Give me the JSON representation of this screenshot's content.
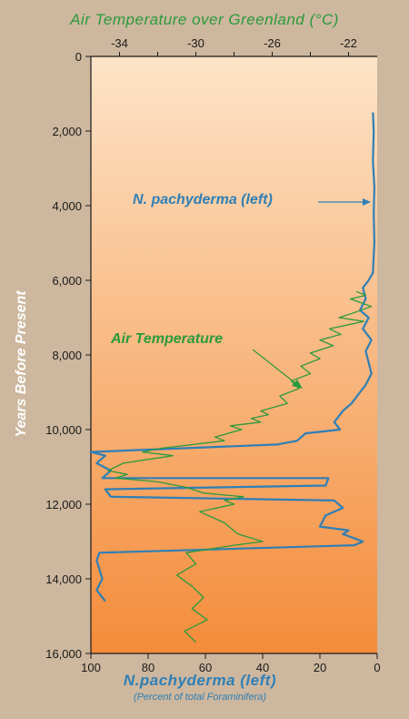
{
  "chart_data": {
    "type": "line",
    "title": "Air Temperature over Greenland (°C)",
    "ylabel": "Years Before Present",
    "xlabel": "N.pachyderma (left)",
    "xlabel_sub": "(Percent of total Foraminifera)",
    "ylim": [
      0,
      16000
    ],
    "y_ticks": [
      "0",
      "2,000",
      "4,000",
      "6,000",
      "8,000",
      "10,000",
      "12,000",
      "14,000",
      "16,000"
    ],
    "bottom_axis": {
      "range": [
        100,
        0
      ],
      "ticks": [
        "100",
        "80",
        "60",
        "40",
        "20",
        "0"
      ]
    },
    "top_axis": {
      "range": [
        -35.5,
        -20.5
      ],
      "ticks": [
        "-34",
        "-30",
        "-26",
        "-22"
      ]
    },
    "annotations": [
      "N. pachyderma (left)",
      "Air Temperature"
    ],
    "colors": {
      "pachyderma": "#2f7fb6",
      "air_temperature": "#2b9a3c",
      "gradient_top": "#fde4c8",
      "gradient_bottom": "#f48c3a",
      "background": "#cdb79e"
    },
    "series": [
      {
        "name": "N. pachyderma (left)",
        "axis": "bottom",
        "points": [
          [
            1.5,
            1500
          ],
          [
            1.2,
            2000
          ],
          [
            1.5,
            2800
          ],
          [
            1.0,
            3500
          ],
          [
            1.2,
            4200
          ],
          [
            1.0,
            5000
          ],
          [
            1.5,
            5800
          ],
          [
            3.0,
            6000
          ],
          [
            5.0,
            6200
          ],
          [
            4.0,
            6500
          ],
          [
            6.0,
            6800
          ],
          [
            3.0,
            7000
          ],
          [
            5.0,
            7300
          ],
          [
            2.0,
            7600
          ],
          [
            4.0,
            7900
          ],
          [
            3.0,
            8200
          ],
          [
            2.0,
            8500
          ],
          [
            4.0,
            8800
          ],
          [
            6.0,
            9000
          ],
          [
            9.0,
            9300
          ],
          [
            12.0,
            9500
          ],
          [
            15.0,
            9800
          ],
          [
            13.0,
            10000
          ],
          [
            25.0,
            10100
          ],
          [
            28.0,
            10300
          ],
          [
            35.0,
            10400
          ],
          [
            100.0,
            10600
          ],
          [
            95.0,
            10700
          ],
          [
            98.0,
            10900
          ],
          [
            93.0,
            11100
          ],
          [
            96.0,
            11300
          ],
          [
            17.0,
            11300
          ],
          [
            18.0,
            11500
          ],
          [
            95.0,
            11600
          ],
          [
            93.0,
            11800
          ],
          [
            15.0,
            11900
          ],
          [
            12.0,
            12100
          ],
          [
            18.0,
            12300
          ],
          [
            20.0,
            12600
          ],
          [
            10.0,
            12700
          ],
          [
            12.0,
            12800
          ],
          [
            5.0,
            13000
          ],
          [
            8.0,
            13100
          ],
          [
            97.0,
            13300
          ],
          [
            98.0,
            13500
          ],
          [
            96.0,
            14000
          ],
          [
            98.0,
            14300
          ],
          [
            95.0,
            14600
          ]
        ]
      },
      {
        "name": "Air Temperature",
        "axis": "top",
        "points": [
          [
            -21.6,
            6300
          ],
          [
            -21.1,
            6400
          ],
          [
            -21.9,
            6500
          ],
          [
            -20.8,
            6700
          ],
          [
            -21.6,
            6850
          ],
          [
            -22.5,
            7000
          ],
          [
            -21.2,
            7100
          ],
          [
            -23.0,
            7300
          ],
          [
            -22.4,
            7450
          ],
          [
            -23.5,
            7600
          ],
          [
            -22.8,
            7750
          ],
          [
            -24.0,
            7950
          ],
          [
            -23.5,
            8100
          ],
          [
            -24.5,
            8300
          ],
          [
            -24.0,
            8500
          ],
          [
            -25.0,
            8700
          ],
          [
            -24.6,
            8900
          ],
          [
            -25.6,
            9100
          ],
          [
            -25.2,
            9300
          ],
          [
            -26.6,
            9500
          ],
          [
            -26.2,
            9600
          ],
          [
            -27.1,
            9700
          ],
          [
            -26.6,
            9800
          ],
          [
            -28.2,
            9900
          ],
          [
            -27.6,
            10000
          ],
          [
            -29.0,
            10200
          ],
          [
            -28.5,
            10300
          ],
          [
            -31.8,
            10500
          ],
          [
            -32.8,
            10600
          ],
          [
            -31.2,
            10700
          ],
          [
            -33.8,
            10900
          ],
          [
            -34.6,
            11100
          ],
          [
            -33.6,
            11200
          ],
          [
            -34.2,
            11300
          ],
          [
            -32.0,
            11400
          ],
          [
            -30.5,
            11550
          ],
          [
            -29.6,
            11700
          ],
          [
            -27.5,
            11800
          ],
          [
            -28.5,
            11900
          ],
          [
            -28.0,
            12000
          ],
          [
            -29.8,
            12200
          ],
          [
            -28.5,
            12500
          ],
          [
            -27.8,
            12800
          ],
          [
            -26.5,
            13000
          ],
          [
            -28.0,
            13100
          ],
          [
            -30.5,
            13300
          ],
          [
            -30.0,
            13600
          ],
          [
            -31.0,
            13900
          ],
          [
            -30.2,
            14200
          ],
          [
            -29.6,
            14500
          ],
          [
            -30.2,
            14800
          ],
          [
            -29.4,
            15100
          ],
          [
            -30.6,
            15400
          ],
          [
            -30.0,
            15700
          ]
        ]
      }
    ]
  }
}
